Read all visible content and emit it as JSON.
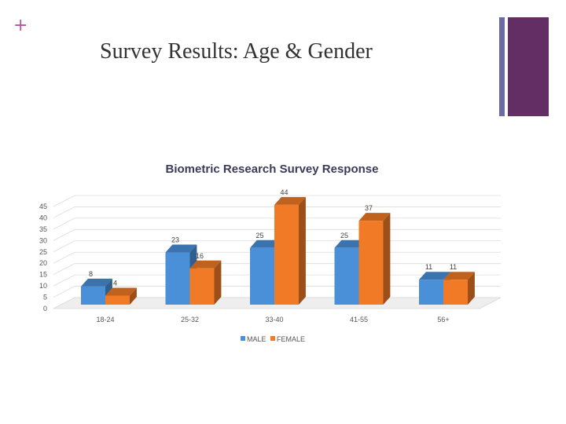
{
  "slide": {
    "plus_glyph": "+",
    "title": "Survey Results: Age & Gender"
  },
  "colors": {
    "accent_plus": "#b455a6",
    "deco_thin": "#6a6aa6",
    "deco_thick": "#632e64",
    "male": "#4a90d9",
    "female": "#f07a26"
  },
  "chart_data": {
    "type": "bar",
    "title": "Biometric Research Survey Response",
    "categories": [
      "18-24",
      "25-32",
      "33-40",
      "41-55",
      "56+"
    ],
    "series": [
      {
        "name": "MALE",
        "values": [
          8,
          23,
          25,
          25,
          11
        ]
      },
      {
        "name": "FEMALE",
        "values": [
          4,
          16,
          44,
          37,
          11
        ]
      }
    ],
    "ylim": [
      0,
      45
    ],
    "yticks": [
      0,
      5,
      10,
      15,
      20,
      25,
      30,
      35,
      40,
      45
    ],
    "grid": true,
    "three_d": true,
    "legend_position": "bottom",
    "data_labels": true
  }
}
